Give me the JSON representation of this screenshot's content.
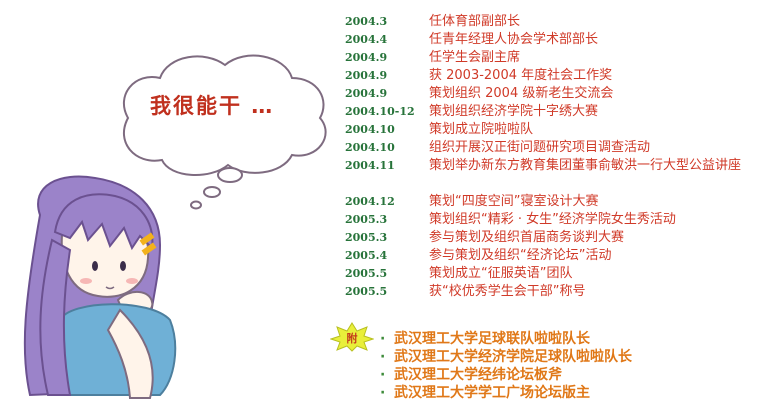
{
  "thought": {
    "text": "我很能干 …"
  },
  "timeline": [
    {
      "date": "2004.3",
      "event": "任体育部副部长"
    },
    {
      "date": "2004.4",
      "event": "任青年经理人协会学术部部长"
    },
    {
      "date": "2004.9",
      "event": "任学生会副主席"
    },
    {
      "date": "2004.9",
      "event": "获 2003-2004 年度社会工作奖"
    },
    {
      "date": "2004.9",
      "event": "策划组织 2004 级新老生交流会"
    },
    {
      "date": "2004.10-12",
      "event": "策划组织经济学院十字绣大赛"
    },
    {
      "date": "2004.10",
      "event": "策划成立院啦啦队"
    },
    {
      "date": "2004.10",
      "event": "组织开展汉正街问题研究项目调查活动"
    },
    {
      "date": "2004.11",
      "event": "策划举办新东方教育集团董事俞敏洪一行大型公益讲座"
    },
    {
      "date": "2004.12",
      "event": "策划“四度空间”寝室设计大赛"
    },
    {
      "date": "2005.3",
      "event": "策划组织“精彩 · 女生”经济学院女生秀活动"
    },
    {
      "date": "2005.3",
      "event": "参与策划及组织首届商务谈判大赛"
    },
    {
      "date": "2005.4",
      "event": "参与策划及组织“经济论坛”活动"
    },
    {
      "date": "2005.5",
      "event": "策划成立“征服英语”团队"
    },
    {
      "date": "2005.5",
      "event": "获“校优秀学生会干部”称号"
    }
  ],
  "appendix": {
    "badge": "附",
    "items": [
      "武汉理工大学足球联队啦啦队长",
      "武汉理工大学经济学院足球队啦啦队长",
      "武汉理工大学经纬论坛板斧",
      "武汉理工大学学工广场论坛版主"
    ]
  },
  "colors": {
    "date": "#27733a",
    "event": "#d03a28",
    "appendix": "#e07818",
    "thought": "#c0301e",
    "hair": "#9b83c9"
  }
}
